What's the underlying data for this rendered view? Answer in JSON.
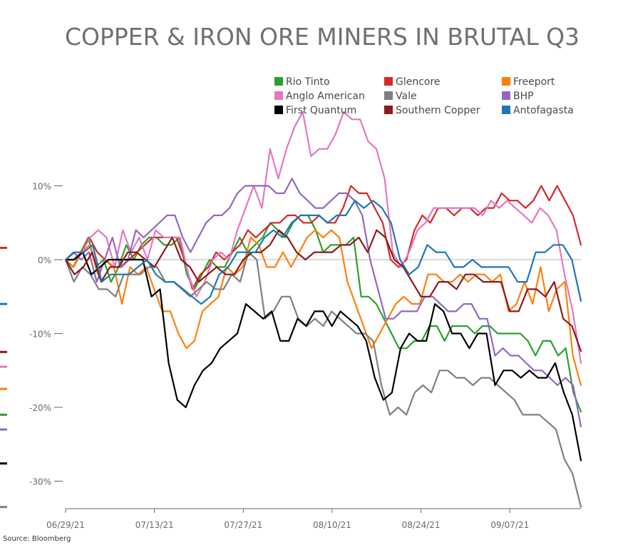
{
  "chart_data": {
    "type": "line",
    "title": "COPPER & IRON ORE MINERS IN BRUTAL Q3",
    "source": "Source: Bloomberg",
    "ylim": [
      -34,
      14
    ],
    "xlim": [
      0,
      58
    ],
    "yticks": [
      {
        "value": 10,
        "label": "10%"
      },
      {
        "value": 0,
        "label": "0%"
      },
      {
        "value": -10,
        "label": "-10%"
      },
      {
        "value": -20,
        "label": "-20%"
      },
      {
        "value": -30,
        "label": "-30%"
      }
    ],
    "xticks": [
      {
        "x": 0,
        "label": "06/29/21"
      },
      {
        "x": 10,
        "label": "07/13/21"
      },
      {
        "x": 20,
        "label": "07/27/21"
      },
      {
        "x": 30,
        "label": "08/10/21"
      },
      {
        "x": 40,
        "label": "08/24/21"
      },
      {
        "x": 50,
        "label": "09/07/21"
      }
    ],
    "legend_position": "top-right",
    "series": [
      {
        "name": "Rio Tinto",
        "color": "#2ca02c",
        "values": [
          0,
          -1,
          1,
          3,
          -1,
          0,
          -3,
          -1,
          2,
          0,
          2,
          3,
          3,
          2,
          2,
          3,
          -2,
          -4,
          -2,
          0,
          -1,
          -1,
          1,
          3,
          1,
          2,
          3,
          5,
          4,
          3,
          5,
          6,
          6,
          4,
          1,
          2,
          2,
          2,
          3,
          -5,
          -5,
          -6,
          -8,
          -10,
          -12,
          -12,
          -11,
          -11,
          -9,
          -9,
          -11,
          -9,
          -9,
          -9,
          -10,
          -9,
          -9,
          -10,
          -10,
          -10,
          -10,
          -11,
          -13,
          -11,
          -11,
          -13,
          -12,
          -18,
          -20.6
        ]
      },
      {
        "name": "Glencore",
        "color": "#d62728",
        "values": [
          0,
          0,
          1,
          3,
          1,
          0,
          -1,
          -1,
          0,
          1,
          2,
          3,
          3,
          3,
          3,
          0,
          -4,
          -2,
          -1,
          1,
          0,
          1,
          2,
          4,
          3,
          4,
          5,
          5,
          6,
          6,
          5,
          5,
          6,
          5,
          5,
          7,
          10,
          9,
          9,
          7,
          5,
          0,
          -1,
          0,
          4,
          6,
          5,
          7,
          7,
          6,
          7,
          7,
          6,
          7,
          7,
          9,
          8,
          8,
          7,
          8,
          10,
          8,
          10,
          8,
          6,
          2
        ]
      },
      {
        "name": "Freeport",
        "color": "#ff7f0e",
        "values": [
          0,
          -1,
          1,
          2,
          -2,
          0,
          -1,
          -6,
          -1,
          -2,
          -1,
          -4,
          -7,
          -7,
          -10,
          -12,
          -11,
          -7,
          -6,
          -5,
          -1,
          -2,
          -1,
          3,
          2,
          -1,
          -1,
          1,
          -1,
          1,
          3,
          4,
          3,
          4,
          3,
          -3,
          -6,
          -9,
          -12,
          -10,
          -8,
          -6,
          -5,
          -6,
          -6,
          -2,
          -2,
          -3,
          -3,
          -2,
          -3,
          -2,
          -2,
          -3,
          -2,
          -7,
          -6,
          -3,
          -6,
          -1,
          -7,
          -4,
          -3,
          -13,
          -17
        ]
      },
      {
        "name": "Anglo American",
        "color": "#e377c2",
        "values": [
          0,
          0,
          1,
          3,
          4,
          3,
          -1,
          4,
          1,
          3,
          0,
          4,
          3,
          3,
          3,
          -2,
          -5,
          -3,
          0,
          1,
          0,
          4,
          7,
          10,
          7,
          15,
          11,
          15,
          18,
          20,
          14,
          15,
          15,
          17,
          20,
          19,
          19,
          16,
          15,
          11,
          1,
          -1,
          1,
          4,
          5,
          7,
          7,
          7,
          7,
          7,
          7,
          6,
          8,
          7,
          8,
          7,
          6,
          5,
          7,
          6,
          4,
          -2,
          -7,
          -14
        ]
      },
      {
        "name": "Vale",
        "color": "#7f7f7f",
        "values": [
          0,
          -3,
          -1,
          -2,
          -4,
          -4,
          -5,
          -2,
          -2,
          -2,
          -1,
          -1,
          -3,
          -3,
          -4,
          -5,
          -4,
          -3,
          -4,
          -4,
          -2,
          -3,
          1,
          0,
          -8,
          -7,
          -5,
          -5,
          -8,
          -9,
          -8,
          -9,
          -7,
          -8,
          -9,
          -10,
          -10,
          -11,
          -17,
          -21,
          -20,
          -21,
          -18,
          -17,
          -18,
          -15,
          -15,
          -16,
          -16,
          -17,
          -16,
          -16,
          -17,
          -18,
          -19,
          -21,
          -21,
          -21,
          -22,
          -23,
          -27,
          -29,
          -33.5
        ]
      },
      {
        "name": "BHP",
        "color": "#9467bd",
        "values": [
          0,
          1,
          0,
          1,
          -3,
          0,
          3,
          -1,
          0,
          4,
          3,
          4,
          5,
          6,
          6,
          3,
          1,
          3,
          5,
          6,
          6,
          7,
          9,
          10,
          10,
          10,
          10,
          9,
          9,
          11,
          9,
          8,
          7,
          7,
          8,
          9,
          9,
          8,
          6,
          0,
          -4,
          -8,
          -8,
          -7,
          -7,
          -7,
          -5,
          -5,
          -6,
          -7,
          -7,
          -6,
          -6,
          -8,
          -8,
          -13,
          -12,
          -13,
          -13,
          -14,
          -15,
          -15,
          -16,
          -17,
          -16,
          -17,
          -22.6
        ]
      },
      {
        "name": "First Quantum",
        "color": "#000000",
        "values": [
          0,
          0,
          1,
          -2,
          -1,
          0,
          0,
          0,
          0,
          0,
          -5,
          -4,
          -14,
          -19,
          -20,
          -17,
          -15,
          -14,
          -12,
          -11,
          -10,
          -6,
          -7,
          -8,
          -7,
          -11,
          -11,
          -8,
          -9,
          -7,
          -7,
          -9,
          -7,
          -8,
          -9,
          -11,
          -16,
          -19,
          -18,
          -12,
          -10,
          -11,
          -11,
          -6,
          -7,
          -10,
          -10,
          -12,
          -10,
          -10,
          -17,
          -15,
          -15,
          -16,
          -15,
          -16,
          -16,
          -14,
          -18,
          -21,
          -27.2
        ]
      },
      {
        "name": "Southern Copper",
        "color": "#8b1a1a",
        "values": [
          0,
          -2,
          -1,
          1,
          -3,
          -1,
          -1,
          1,
          1,
          0,
          -1,
          1,
          3,
          0,
          -1,
          -3,
          -2,
          -1,
          -2,
          -2,
          0,
          1,
          1,
          2,
          4,
          3,
          1,
          0,
          1,
          1,
          1,
          2,
          2,
          3,
          1,
          4,
          3,
          0,
          -1,
          -3,
          -5,
          -5,
          -3,
          -3,
          -4,
          -2,
          -2,
          -3,
          -3,
          -3,
          -7,
          -7,
          -4,
          -4,
          -5,
          -3,
          -8,
          -9,
          -12.4
        ]
      },
      {
        "name": "Antofagasta",
        "color": "#1f77b4",
        "values": [
          0,
          1,
          1,
          2,
          -3,
          -2,
          -2,
          -2,
          -1,
          0,
          -2,
          -3,
          -3,
          -4,
          -5,
          -6,
          -5,
          -2,
          -1,
          1,
          1,
          1,
          3,
          4,
          3,
          5,
          6,
          6,
          6,
          5,
          6,
          6,
          8,
          7,
          8,
          7,
          5,
          0,
          -2,
          -1,
          2,
          1,
          1,
          -1,
          -1,
          0,
          -1,
          -1,
          -1,
          -1,
          -3,
          -3,
          1,
          1,
          2,
          2,
          0,
          -5.6
        ]
      }
    ],
    "end_markers": [
      {
        "series": "Glencore",
        "value": 1.6
      },
      {
        "series": "Antofagasta",
        "value": -6
      },
      {
        "series": "Southern Copper",
        "value": -12.5
      },
      {
        "series": "Anglo American",
        "value": -14.5
      },
      {
        "series": "Freeport",
        "value": -17.5
      },
      {
        "series": "Rio Tinto",
        "value": -21
      },
      {
        "series": "BHP",
        "value": -23
      },
      {
        "series": "First Quantum",
        "value": -27.6
      },
      {
        "series": "Vale",
        "value": -33.5
      }
    ],
    "legend": [
      {
        "name": "Rio Tinto",
        "color": "#2ca02c"
      },
      {
        "name": "Glencore",
        "color": "#d62728"
      },
      {
        "name": "Freeport",
        "color": "#ff7f0e"
      },
      {
        "name": "Anglo American",
        "color": "#e377c2"
      },
      {
        "name": "Vale",
        "color": "#7f7f7f"
      },
      {
        "name": "BHP",
        "color": "#9467bd"
      },
      {
        "name": "First Quantum",
        "color": "#000000"
      },
      {
        "name": "Southern Copper",
        "color": "#8b1a1a"
      },
      {
        "name": "Antofagasta",
        "color": "#1f77b4"
      }
    ]
  }
}
